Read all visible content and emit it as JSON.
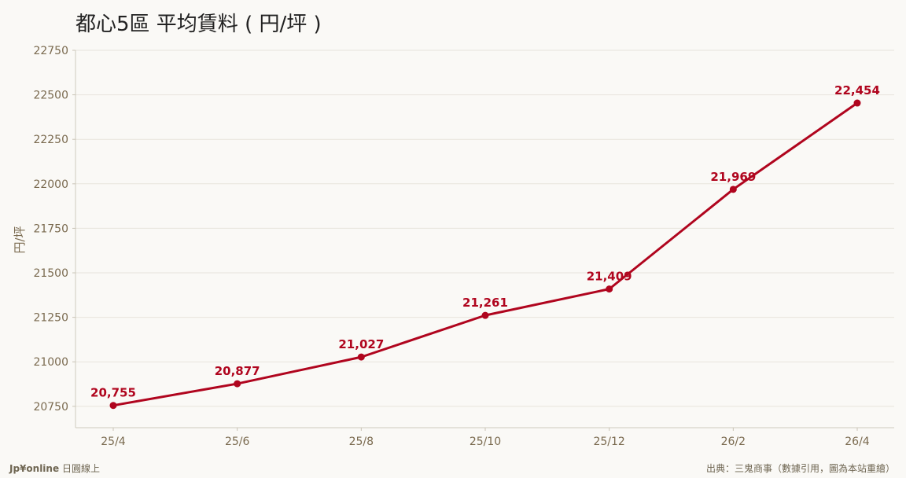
{
  "chart_data": {
    "type": "line",
    "title": "都心5區 平均賃料 ( 円/坪 )",
    "ylabel": "円/坪",
    "xlabel": "",
    "categories": [
      "25/4",
      "25/6",
      "25/8",
      "25/10",
      "25/12",
      "26/2",
      "26/4"
    ],
    "series": [
      {
        "values": [
          20755,
          20877,
          21027,
          21261,
          21409,
          21969,
          22454
        ],
        "data_labels": [
          "20,755",
          "20,877",
          "21,027",
          "21,261",
          "21,409",
          "21,969",
          "22,454"
        ]
      }
    ],
    "ylim": [
      20630,
      22750
    ],
    "yticks": [
      20750,
      21000,
      21250,
      21500,
      21750,
      22000,
      22250,
      22500,
      22750
    ],
    "grid": true,
    "colors": {
      "line": "#b0051e",
      "axis_text": "#7a6a4f",
      "grid": "#e7e4dc"
    }
  },
  "footer": {
    "brand": "Jp¥online",
    "brand_suffix": "日圓線上",
    "source": "出典：三鬼商事（數據引用，圖為本站重繪）"
  }
}
